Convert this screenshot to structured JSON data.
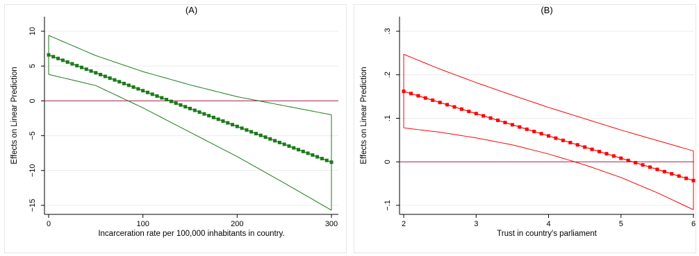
{
  "chart_data": [
    {
      "type": "line",
      "panel": "A",
      "title": "(A)",
      "xlabel": "Incarceration rate per 100,000 inhabitants in country.",
      "ylabel": "Effects on Linear Prediction",
      "xlim": [
        0,
        300
      ],
      "ylim": [
        -15,
        10
      ],
      "xticks": [
        0,
        100,
        200,
        300
      ],
      "xtick_labels": [
        "0",
        "100",
        "200",
        "300"
      ],
      "yticks": [
        -15,
        -10,
        -5,
        0,
        5,
        10
      ],
      "ytick_labels": [
        "−15",
        "−10",
        "−5",
        "0",
        "5",
        "10"
      ],
      "reference_line_y": 0,
      "grid": true,
      "color": "#1a7a1a",
      "reference_color": "#b0204a",
      "series": [
        {
          "role": "estimate",
          "x_start": 0,
          "x_end": 300,
          "points": 61,
          "y_start": 6.6,
          "y_end": -8.8
        },
        {
          "role": "upper",
          "x": [
            0,
            50,
            100,
            150,
            200,
            250,
            300
          ],
          "y": [
            9.4,
            6.5,
            4.2,
            2.3,
            0.6,
            -0.7,
            -2.0
          ]
        },
        {
          "role": "lower",
          "x": [
            0,
            50,
            100,
            150,
            200,
            250,
            300
          ],
          "y": [
            3.8,
            2.2,
            -1.0,
            -4.5,
            -8.0,
            -11.8,
            -15.7
          ]
        }
      ]
    },
    {
      "type": "line",
      "panel": "B",
      "title": "(B)",
      "xlabel": "Trust in country's parliament",
      "ylabel": "Effects on Linear Prediction",
      "xlim": [
        2,
        6
      ],
      "ylim": [
        -0.1,
        0.3
      ],
      "xticks": [
        2,
        3,
        4,
        5,
        6
      ],
      "xtick_labels": [
        "2",
        "3",
        "4",
        "5",
        "6"
      ],
      "yticks": [
        -0.1,
        0,
        0.1,
        0.2,
        0.3
      ],
      "ytick_labels": [
        "−.1",
        "0",
        ".1",
        ".2",
        ".3"
      ],
      "reference_line_y": 0,
      "grid": true,
      "color": "#ff0000",
      "reference_color": "#b0204a",
      "series": [
        {
          "role": "estimate",
          "x_start": 2,
          "x_end": 6,
          "points": 41,
          "y_start": 0.162,
          "y_end": -0.043
        },
        {
          "role": "upper",
          "x": [
            2,
            2.5,
            3,
            3.5,
            4,
            4.5,
            5,
            5.5,
            6
          ],
          "y": [
            0.247,
            0.213,
            0.182,
            0.153,
            0.125,
            0.099,
            0.073,
            0.049,
            0.025
          ]
        },
        {
          "role": "lower",
          "x": [
            2,
            2.5,
            3,
            3.5,
            4,
            4.5,
            5,
            5.5,
            6
          ],
          "y": [
            0.078,
            0.068,
            0.055,
            0.039,
            0.018,
            -0.007,
            -0.036,
            -0.071,
            -0.11
          ]
        }
      ]
    }
  ]
}
